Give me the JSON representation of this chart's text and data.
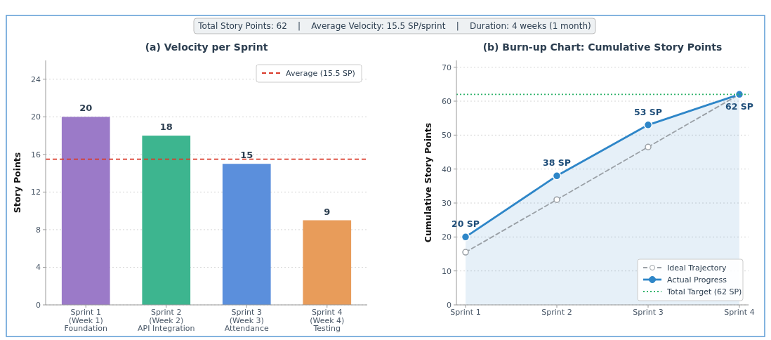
{
  "chart_data": [
    {
      "type": "bar",
      "title": "(a) Velocity per Sprint",
      "ylabel": "Story Points",
      "annotations": [
        "Total Story Points: 62    |    Average Velocity: 15.5 SP/sprint    |    Duration: 4 weeks (1 month)"
      ],
      "categories": [
        "Sprint 1\n(Week 1)\nFoundation",
        "Sprint 2\n(Week 2)\nAPI Integration",
        "Sprint 3\n(Week 3)\nAttendance",
        "Sprint 4\n(Week 4)\nTesting"
      ],
      "values": [
        20,
        18,
        15,
        9
      ],
      "colors": [
        "#9b7ac8",
        "#3db58f",
        "#5b8fdc",
        "#e89c5a"
      ],
      "ylim": [
        0,
        26
      ],
      "yticks": [
        0,
        4,
        8,
        12,
        16,
        20,
        24
      ],
      "grid": "y",
      "data_labels": true,
      "legend": "top right",
      "ref_lines": [
        {
          "axis": "y",
          "value": 15.5,
          "label": "Average (15.5 SP)",
          "color": "#d93b2b",
          "line_style": "dashed"
        }
      ]
    },
    {
      "type": "line",
      "title": "(b) Burn-up Chart: Cumulative Story Points",
      "ylabel": "Cumulative Story Points",
      "categories": [
        "Sprint 1",
        "Sprint 2",
        "Sprint 3",
        "Sprint 4"
      ],
      "ylim": [
        0,
        72
      ],
      "yticks": [
        0,
        10,
        20,
        30,
        40,
        50,
        60,
        70
      ],
      "grid": "y",
      "legend": "bottom right",
      "series": [
        {
          "name": "Ideal Trajectory",
          "type": "line",
          "color": "#9aa0a6",
          "values": [
            15.5,
            31,
            46.5,
            62
          ],
          "marker": "circle",
          "line_style": "dashed"
        },
        {
          "name": "Actual Progress",
          "type": "area",
          "color": "#2e86c8",
          "values": [
            20,
            38,
            53,
            62
          ],
          "marker": "circle",
          "line_style": "solid",
          "value_labels": [
            "20 SP",
            "38 SP",
            "53 SP",
            "62 SP"
          ]
        }
      ],
      "ref_lines": [
        {
          "axis": "y",
          "value": 62,
          "label": "Total Target (62 SP)",
          "color": "#2fb36b",
          "line_style": "dotted"
        }
      ]
    }
  ]
}
